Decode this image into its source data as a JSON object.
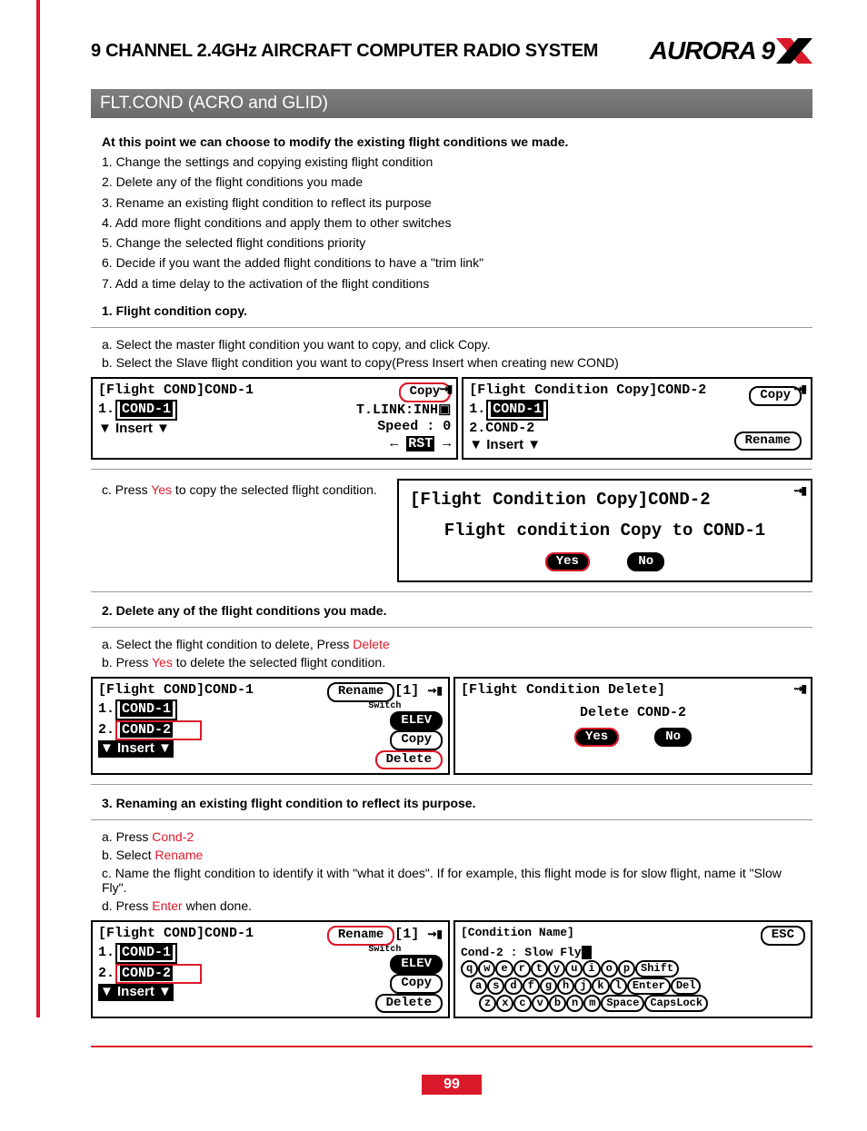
{
  "header": {
    "product_title": "9 CHANNEL 2.4GHz AIRCRAFT COMPUTER RADIO SYSTEM",
    "logo_text": "AURORA 9",
    "logo_accent_color": "#da1a2a"
  },
  "section_title": "FLT.COND (ACRO and GLID)",
  "intro": "At this point we can choose to modify the existing flight conditions we made.",
  "intro_list": [
    "1. Change the settings and copying existing flight condition",
    "2. Delete any of the flight conditions you made",
    "3. Rename an existing flight condition to reflect its purpose",
    "4. Add more flight conditions and apply them to other switches",
    "5. Change the selected flight conditions priority",
    "6. Decide if you want the added flight conditions to have a \"trim link\"",
    "7. Add a time delay to the activation of the flight conditions"
  ],
  "step1": {
    "title": "1. Flight condition copy.",
    "a": "a. Select the master flight condition you want to copy, and click Copy.",
    "b": "b. Select the Slave flight condition you want to copy(Press Insert when creating new COND)",
    "c_pre": "c. Press ",
    "c_red": "Yes",
    "c_post": " to copy the selected flight condition.",
    "lcd_left": {
      "title": "[Flight COND]COND-1",
      "line1_num": "1.",
      "line1_box": "COND-1",
      "insert": "▼ Insert ▼",
      "copy": "Copy",
      "tlink": "T.LINK:INH",
      "speed": "Speed : 0",
      "rst": "RST"
    },
    "lcd_right": {
      "title": "[Flight Condition Copy]COND-2",
      "line1_num": "1.",
      "line1_box": "COND-1",
      "line2": "2.COND-2",
      "insert": "▼ Insert ▼",
      "copy": "Copy",
      "rename": "Rename"
    },
    "lcd_confirm": {
      "title": "[Flight Condition Copy]COND-2",
      "msg": "Flight condition Copy to COND-1",
      "yes": "Yes",
      "no": "No"
    }
  },
  "step2": {
    "title": "2. Delete any of the flight conditions you made.",
    "a_pre": "a. Select the flight condition to delete, Press ",
    "a_red": "Delete",
    "b_pre": "b. Press ",
    "b_red": "Yes",
    "b_post": " to delete the selected flight condition.",
    "lcd_left": {
      "title": "[Flight COND]COND-1",
      "l1_num": "1.",
      "l1_box": "COND-1",
      "l2_num": "2.",
      "l2_box": "COND-2",
      "insert": "▼ Insert ▼",
      "rename": "Rename",
      "switch": "Switch",
      "elev": "ELEV",
      "copy": "Copy",
      "delete": "Delete",
      "one": "[1]"
    },
    "lcd_right": {
      "title": "[Flight Condition Delete]",
      "msg": "Delete COND-2",
      "yes": "Yes",
      "no": "No"
    }
  },
  "step3": {
    "title": "3. Renaming an existing flight condition to reflect its purpose.",
    "a_pre": "a. Press ",
    "a_red": "Cond-2",
    "b_pre": "b. Select ",
    "b_red": "Rename",
    "c": "c. Name the flight condition to identify it with \"what it does\".  If for example, this flight mode is for slow flight, name it \"Slow Fly\".",
    "d_pre": "d. Press ",
    "d_red": "Enter",
    "d_post": " when done.",
    "lcd_left": {
      "title": "[Flight COND]COND-1",
      "l1_num": "1.",
      "l1_box": "COND-1",
      "l2_num": "2.",
      "l2_box": "COND-2",
      "insert": "▼ Insert ▼",
      "rename": "Rename",
      "switch": "Switch",
      "elev": "ELEV",
      "copy": "Copy",
      "delete": "Delete",
      "one": "[1]"
    },
    "lcd_right": {
      "title": "[Condition Name]",
      "entry": "Cond-2 : Slow Fly",
      "esc": "ESC",
      "row1": [
        "q",
        "w",
        "e",
        "r",
        "t",
        "y",
        "u",
        "i",
        "o",
        "p"
      ],
      "shift": "Shift",
      "row2": [
        "a",
        "s",
        "d",
        "f",
        "g",
        "h",
        "j",
        "k",
        "l"
      ],
      "enter": "Enter",
      "del": "Del",
      "row3": [
        "z",
        "x",
        "c",
        "v",
        "b",
        "n",
        "m"
      ],
      "space": "Space",
      "caps": "CapsLock"
    }
  },
  "page_number": "99",
  "colors": {
    "red": "#da1a2a",
    "section_bg": "#6f6f6f"
  }
}
